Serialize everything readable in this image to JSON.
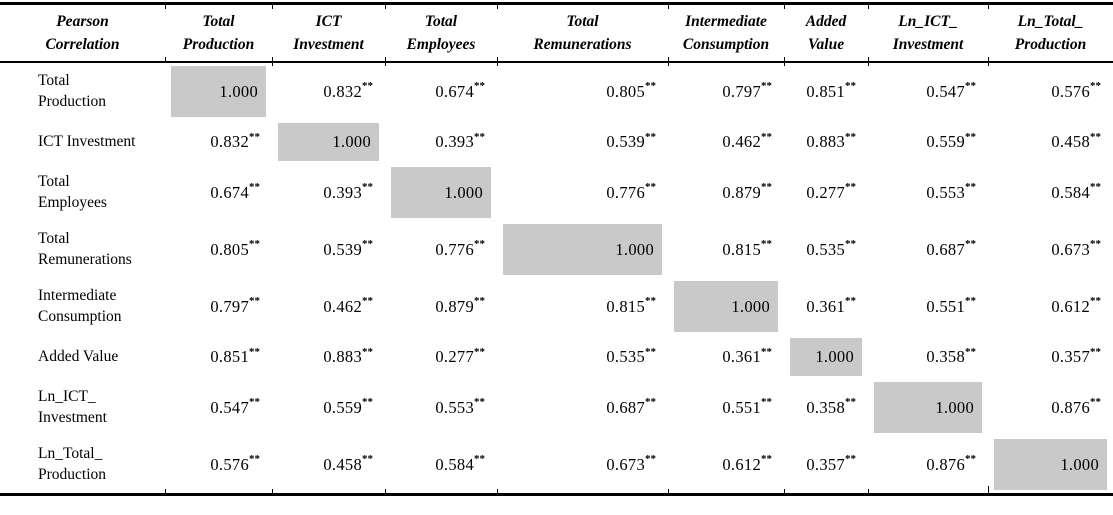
{
  "table": {
    "corner_header": "Pearson\nCorrelation",
    "col_headers": [
      "Total\nProduction",
      "ICT\nInvestment",
      "Total\nEmployees",
      "Total\nRemunerations",
      "Intermediate\nConsumption",
      "Added\nValue",
      "Ln_ICT_\nInvestment",
      "Ln_Total_\nProduction"
    ],
    "sig_marker": "**",
    "diagonal_fill": "#c9c9c9",
    "rows": [
      {
        "label": "Total\nProduction",
        "values": [
          "1.000",
          "0.832",
          "0.674",
          "0.805",
          "0.797",
          "0.851",
          "0.547",
          "0.576"
        ]
      },
      {
        "label": "ICT Investment",
        "values": [
          "0.832",
          "1.000",
          "0.393",
          "0.539",
          "0.462",
          "0.883",
          "0.559",
          "0.458"
        ]
      },
      {
        "label": "Total\nEmployees",
        "values": [
          "0.674",
          "0.393",
          "1.000",
          "0.776",
          "0.879",
          "0.277",
          "0.553",
          "0.584"
        ]
      },
      {
        "label": "Total\nRemunerations",
        "values": [
          "0.805",
          "0.539",
          "0.776",
          "1.000",
          "0.815",
          "0.535",
          "0.687",
          "0.673"
        ]
      },
      {
        "label": "Intermediate\nConsumption",
        "values": [
          "0.797",
          "0.462",
          "0.879",
          "0.815",
          "1.000",
          "0.361",
          "0.551",
          "0.612"
        ]
      },
      {
        "label": "Added Value",
        "values": [
          "0.851",
          "0.883",
          "0.277",
          "0.535",
          "0.361",
          "1.000",
          "0.358",
          "0.357"
        ]
      },
      {
        "label": "Ln_ICT_\nInvestment",
        "values": [
          "0.547",
          "0.559",
          "0.553",
          "0.687",
          "0.551",
          "0.358",
          "1.000",
          "0.876"
        ]
      },
      {
        "label": "Ln_Total_\nProduction",
        "values": [
          "0.576",
          "0.458",
          "0.584",
          "0.673",
          "0.612",
          "0.357",
          "0.876",
          "1.000"
        ]
      }
    ]
  }
}
